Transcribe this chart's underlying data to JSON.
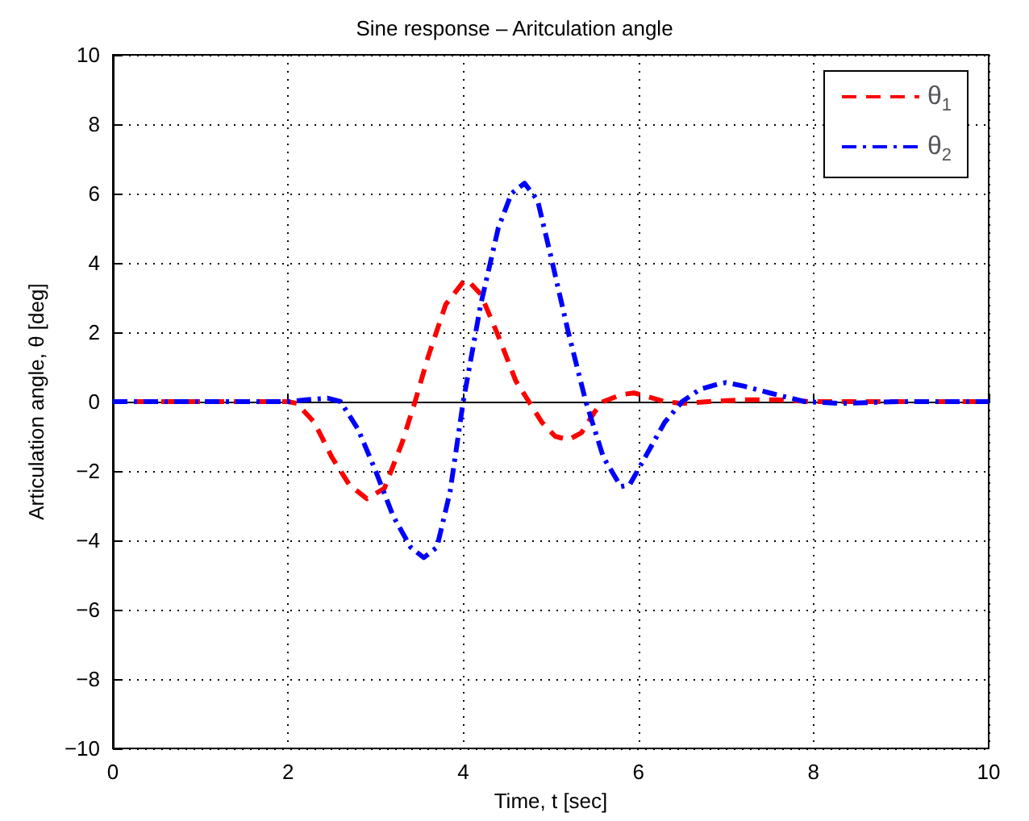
{
  "chart_data": {
    "type": "line",
    "title": "Sine response – Aritculation angle",
    "xlabel": "Time, t [sec]",
    "ylabel": "Articulation angle, θ [deg]",
    "xlim": [
      0,
      10
    ],
    "xticks": [
      0,
      2,
      4,
      6,
      8,
      10
    ],
    "ylim": [
      -10,
      10
    ],
    "yticks": [
      -10,
      -8,
      -6,
      -4,
      -2,
      0,
      2,
      4,
      6,
      8,
      10
    ],
    "grid": true,
    "legend": "top right",
    "marker": "none",
    "series": [
      {
        "name": "θ$_{1}$",
        "color": "#ff0000",
        "line_style": "dashed",
        "x": [
          0,
          1,
          2,
          2.1,
          2.3,
          2.5,
          2.7,
          2.9,
          3.1,
          3.3,
          3.45,
          3.6,
          3.8,
          4.0,
          4.05,
          4.2,
          4.4,
          4.6,
          4.75,
          4.9,
          5.05,
          5.2,
          5.35,
          5.5,
          5.6,
          5.8,
          5.95,
          6.1,
          6.3,
          6.5,
          6.8,
          7.2,
          7.6,
          8,
          9,
          10
        ],
        "values": [
          0,
          0,
          0,
          -0.05,
          -0.6,
          -1.6,
          -2.4,
          -2.8,
          -2.5,
          -1.2,
          0,
          1.3,
          2.8,
          3.45,
          3.5,
          3.1,
          1.9,
          0.6,
          0,
          -0.6,
          -1.0,
          -1.1,
          -0.9,
          -0.3,
          0,
          0.2,
          0.25,
          0.15,
          0,
          -0.05,
          0,
          0.05,
          0.05,
          0,
          0,
          0
        ]
      },
      {
        "name": "θ$_{2}$",
        "color": "#0000ff",
        "line_style": "dashdot",
        "x": [
          0,
          1,
          2,
          2.2,
          2.45,
          2.6,
          2.8,
          3.0,
          3.2,
          3.4,
          3.55,
          3.7,
          3.85,
          4.0,
          4.2,
          4.4,
          4.55,
          4.7,
          4.85,
          5.0,
          5.2,
          5.4,
          5.6,
          5.8,
          5.9,
          6.1,
          6.3,
          6.5,
          6.7,
          6.9,
          7.0,
          7.2,
          7.5,
          7.9,
          8.3,
          9,
          10
        ],
        "values": [
          0,
          0,
          0,
          0.05,
          0.1,
          0,
          -0.8,
          -2.0,
          -3.3,
          -4.2,
          -4.5,
          -4.2,
          -2.6,
          0,
          2.8,
          5.0,
          6.0,
          6.3,
          5.8,
          4.2,
          2.0,
          0,
          -1.6,
          -2.45,
          -2.4,
          -1.5,
          -0.6,
          0,
          0.35,
          0.5,
          0.55,
          0.45,
          0.25,
          0,
          -0.05,
          0,
          0
        ]
      }
    ]
  }
}
